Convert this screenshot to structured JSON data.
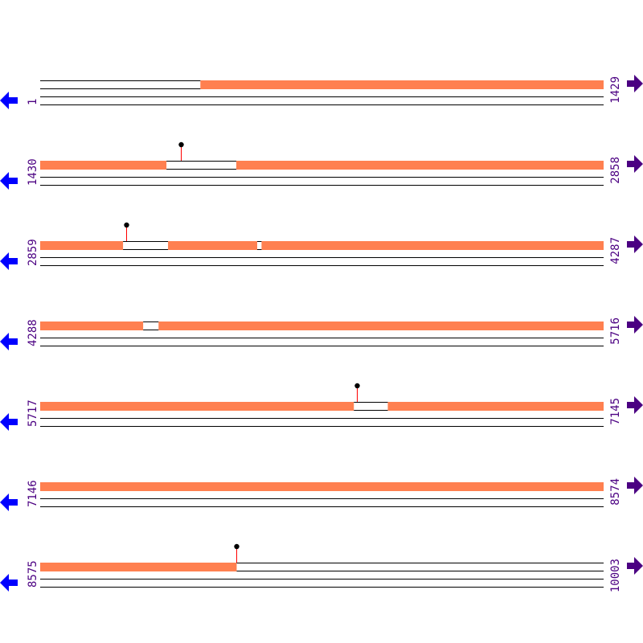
{
  "colors": {
    "coverage": "#ff8050",
    "track_line": "#000000",
    "stem": "#ff0000",
    "head": "#000000",
    "left_arrow": "#0000ff",
    "right_arrow": "#4b0082",
    "label": "#4b0082"
  },
  "icons": {
    "left": "arrow-left-icon",
    "right": "arrow-right-icon"
  },
  "rows": [
    {
      "start": "1",
      "end": "1429",
      "s": 1,
      "e": 1429,
      "gaps": [
        [
          1,
          407
        ]
      ],
      "markers": []
    },
    {
      "start": "1430",
      "end": "2858",
      "s": 1430,
      "e": 2858,
      "gaps": [
        [
          1750,
          1927
        ]
      ],
      "markers": [
        1787
      ]
    },
    {
      "start": "2859",
      "end": "4287",
      "s": 2859,
      "e": 4287,
      "gaps": [
        [
          3069,
          3183
        ],
        [
          3409,
          3420
        ]
      ],
      "markers": [
        3077
      ]
    },
    {
      "start": "4288",
      "end": "5716",
      "s": 4288,
      "e": 5716,
      "gaps": [
        [
          4549,
          4588
        ]
      ],
      "markers": []
    },
    {
      "start": "5717",
      "end": "7145",
      "s": 5717,
      "e": 7145,
      "gaps": [
        [
          6512,
          6598
        ]
      ],
      "markers": [
        6520
      ]
    },
    {
      "start": "7146",
      "end": "8574",
      "s": 7146,
      "e": 8574,
      "gaps": [],
      "markers": []
    },
    {
      "start": "8575",
      "end": "10003",
      "s": 8575,
      "e": 10003,
      "gaps": [
        [
          9073,
          10003
        ]
      ],
      "markers": [
        9073
      ]
    }
  ]
}
